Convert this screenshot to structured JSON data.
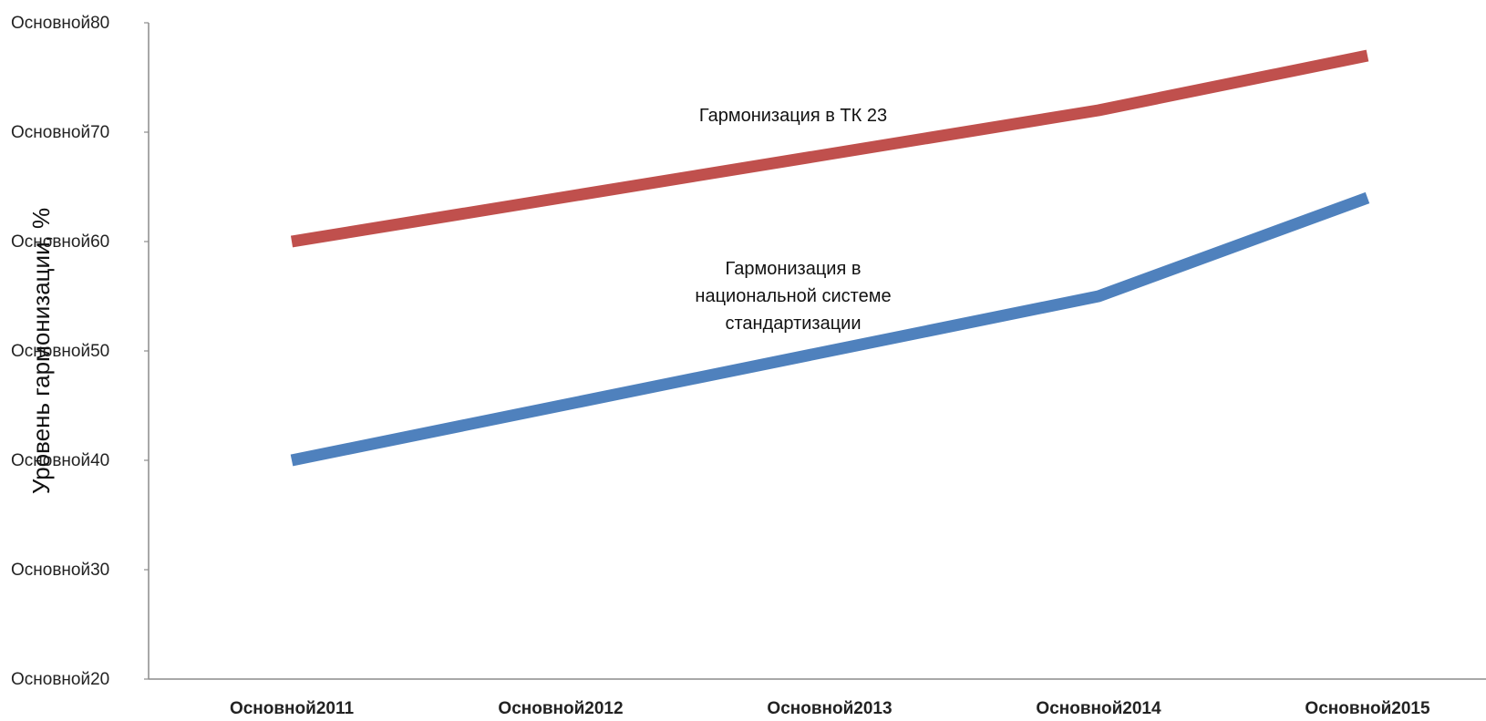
{
  "chart_data": {
    "type": "line",
    "title": "",
    "xlabel": "",
    "ylabel": "Уровень гармонизации, %",
    "categories": [
      "Основной2011",
      "Основной2012",
      "Основной2013",
      "Основной2014",
      "Основной2015"
    ],
    "ylim": [
      20,
      80
    ],
    "y_ticks": [
      {
        "value": 20,
        "label": "Основной20"
      },
      {
        "value": 30,
        "label": "Основной30"
      },
      {
        "value": 40,
        "label": "Основной40"
      },
      {
        "value": 50,
        "label": "Основной50"
      },
      {
        "value": 60,
        "label": "Основной60"
      },
      {
        "value": 70,
        "label": "Основной70"
      },
      {
        "value": 80,
        "label": "Основной80"
      }
    ],
    "grid": false,
    "legend": "none",
    "series": [
      {
        "name": "Гармонизация в ТК 23",
        "color": "#C0504D",
        "values": [
          60,
          64,
          68,
          72,
          77
        ]
      },
      {
        "name": "Гармонизация в национальной системе стандартизации",
        "color": "#4F81BD",
        "values": [
          40,
          45,
          50,
          55,
          64
        ]
      }
    ],
    "annotations": [
      {
        "series": 0,
        "lines": [
          "Гармонизация в ТК 23"
        ],
        "x": "Основной2013",
        "y": 71
      },
      {
        "series": 1,
        "lines": [
          "Гармонизация в",
          "национальной системе",
          "стандартизации"
        ],
        "x": "Основной2013",
        "y": 57
      }
    ]
  }
}
